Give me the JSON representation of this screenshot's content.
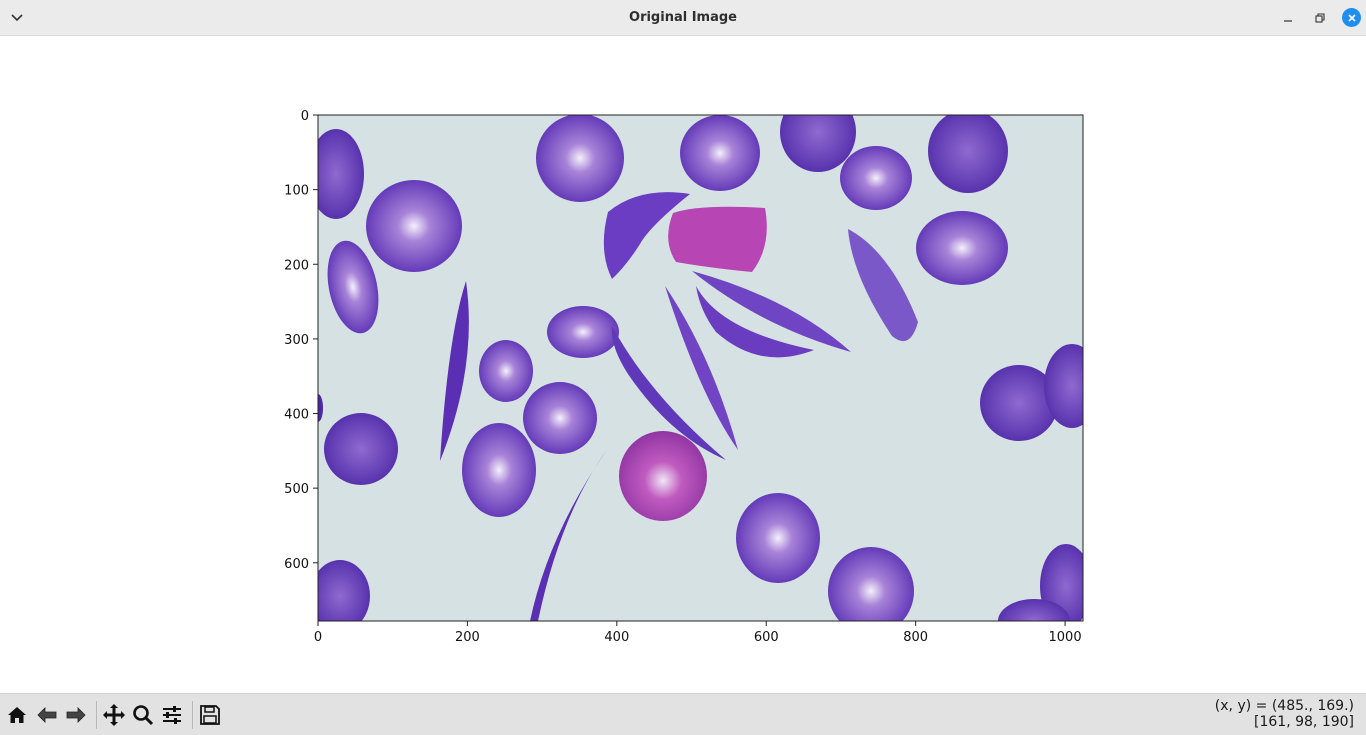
{
  "window": {
    "title": "Original Image",
    "menu_icon": "chevron-down-icon",
    "minimize_icon": "minimize-icon",
    "maximize_icon": "restore-icon",
    "close_icon": "close-icon",
    "close_color": "#1e8ff0"
  },
  "plot": {
    "x_ticks": [
      "0",
      "200",
      "400",
      "600",
      "800",
      "1000"
    ],
    "y_ticks": [
      "0",
      "100",
      "200",
      "300",
      "400",
      "500",
      "600"
    ],
    "image_width": 1024,
    "image_height": 678,
    "background_color": "#d4e0e4",
    "cell_color": "#6a3fbf",
    "pink_cell_color": "#b044b0"
  },
  "toolbar": {
    "buttons": [
      {
        "name": "home-icon"
      },
      {
        "name": "back-icon"
      },
      {
        "name": "forward-icon"
      },
      {
        "name": "pan-icon"
      },
      {
        "name": "zoom-icon"
      },
      {
        "name": "configure-subplots-icon"
      },
      {
        "name": "save-icon"
      }
    ],
    "coords_line1": "(x, y) = (485., 169.)",
    "coords_line2": "[161, 98, 190]"
  }
}
